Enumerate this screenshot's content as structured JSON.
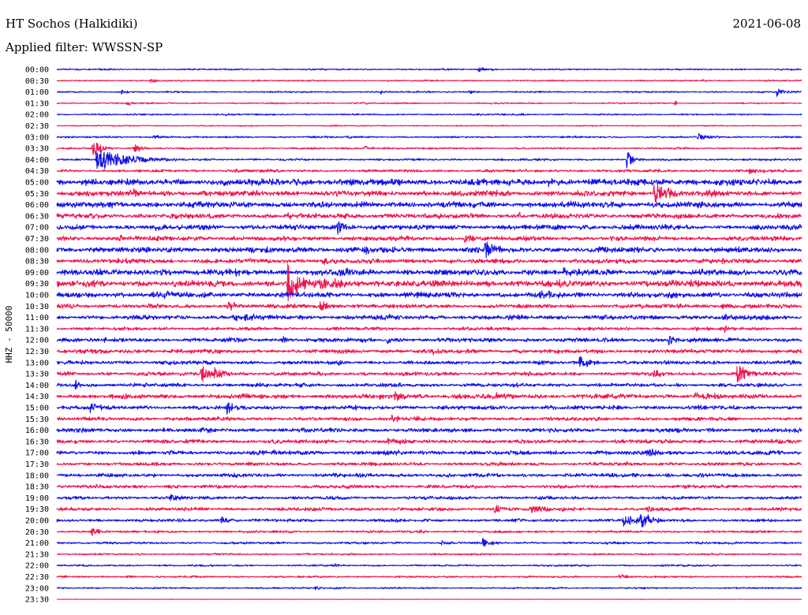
{
  "chart_data": {
    "type": "line",
    "title": "HT Sochos (Halkidiki)",
    "date": "2021-06-08",
    "subtitle": "Applied filter: WWSSN-SP",
    "ylabel": "HHZ - 50000",
    "xlim": [
      0,
      30
    ],
    "colors": {
      "on_the_hour": "#1212e8",
      "half_hour": "#ee1650",
      "background": "#ffffff",
      "text": "#000000"
    },
    "rows": [
      {
        "label": "00:00",
        "noise": 0.07,
        "events": [
          {
            "min": 17.0,
            "amp": 0.25,
            "decay": 0.2
          },
          {
            "min": 17.5,
            "amp": 0.15,
            "decay": 0.15
          }
        ]
      },
      {
        "label": "00:30",
        "noise": 0.06,
        "events": [
          {
            "min": 3.75,
            "amp": 0.18,
            "decay": 0.4
          },
          {
            "min": 7.9,
            "amp": 0.12,
            "decay": 0.2
          },
          {
            "min": 26.0,
            "amp": 0.1,
            "decay": 0.2
          }
        ]
      },
      {
        "label": "01:00",
        "noise": 0.07,
        "events": [
          {
            "min": 2.6,
            "amp": 0.2,
            "decay": 0.2
          },
          {
            "min": 13.0,
            "amp": 0.18,
            "decay": 0.3
          },
          {
            "min": 16.6,
            "amp": 0.15,
            "decay": 0.3
          },
          {
            "min": 29.0,
            "amp": 0.4,
            "decay": 0.25
          }
        ]
      },
      {
        "label": "01:30",
        "noise": 0.06,
        "events": [
          {
            "min": 2.8,
            "amp": 0.2,
            "decay": 0.3
          },
          {
            "min": 12.3,
            "amp": 0.12,
            "decay": 0.3
          },
          {
            "min": 24.9,
            "amp": 0.35,
            "decay": 0.05
          }
        ]
      },
      {
        "label": "02:00",
        "noise": 0.07,
        "events": [
          {
            "min": 6.8,
            "amp": 0.12,
            "decay": 0.3
          },
          {
            "min": 18.5,
            "amp": 0.1,
            "decay": 0.3
          }
        ]
      },
      {
        "label": "02:30",
        "noise": 0.05,
        "events": [
          {
            "min": 11.0,
            "amp": 0.1,
            "decay": 0.3
          }
        ]
      },
      {
        "label": "03:00",
        "noise": 0.08,
        "events": [
          {
            "min": 3.9,
            "amp": 0.2,
            "decay": 0.4
          },
          {
            "min": 11.7,
            "amp": 0.15,
            "decay": 0.3
          },
          {
            "min": 25.8,
            "amp": 0.3,
            "decay": 0.5
          }
        ]
      },
      {
        "label": "03:30",
        "noise": 0.08,
        "events": [
          {
            "min": 1.45,
            "amp": 0.85,
            "decay": 0.3
          },
          {
            "min": 3.1,
            "amp": 0.45,
            "decay": 0.3
          },
          {
            "min": 12.4,
            "amp": 0.2,
            "decay": 0.4
          }
        ]
      },
      {
        "label": "04:00",
        "noise": 0.09,
        "events": [
          {
            "min": 1.6,
            "amp": 1.0,
            "decay": 1.2
          },
          {
            "min": 22.95,
            "amp": 0.75,
            "decay": 0.25
          }
        ]
      },
      {
        "label": "04:30",
        "noise": 0.12,
        "events": [
          {
            "min": 7.2,
            "amp": 0.15,
            "decay": 0.8
          },
          {
            "min": 27.9,
            "amp": 0.2,
            "decay": 0.8
          }
        ]
      },
      {
        "label": "05:00",
        "noise": 0.28,
        "events": [
          {
            "min": 1.0,
            "amp": 0.25,
            "decay": 0.4
          },
          {
            "min": 9.5,
            "amp": 0.2,
            "decay": 0.4
          },
          {
            "min": 19.8,
            "amp": 0.25,
            "decay": 0.4
          },
          {
            "min": 24.3,
            "amp": 0.2,
            "decay": 0.3
          }
        ]
      },
      {
        "label": "05:30",
        "noise": 0.24,
        "events": [
          {
            "min": 3.1,
            "amp": 0.4,
            "decay": 0.3
          },
          {
            "min": 17.6,
            "amp": 0.2,
            "decay": 0.4
          },
          {
            "min": 24.05,
            "amp": 1.05,
            "decay": 0.6
          }
        ]
      },
      {
        "label": "06:00",
        "noise": 0.26,
        "events": [
          {
            "min": 13.2,
            "amp": 0.2,
            "decay": 0.3
          },
          {
            "min": 22.0,
            "amp": 0.2,
            "decay": 0.4
          }
        ]
      },
      {
        "label": "06:30",
        "noise": 0.22,
        "events": [
          {
            "min": 9.3,
            "amp": 0.18,
            "decay": 0.3
          },
          {
            "min": 18.6,
            "amp": 0.2,
            "decay": 0.3
          }
        ]
      },
      {
        "label": "07:00",
        "noise": 0.22,
        "events": [
          {
            "min": 3.95,
            "amp": 0.35,
            "decay": 0.2
          },
          {
            "min": 5.9,
            "amp": 0.2,
            "decay": 0.2
          },
          {
            "min": 11.3,
            "amp": 0.7,
            "decay": 0.35
          }
        ]
      },
      {
        "label": "07:30",
        "noise": 0.2,
        "events": [
          {
            "min": 2.5,
            "amp": 0.3,
            "decay": 0.5
          },
          {
            "min": 16.4,
            "amp": 0.45,
            "decay": 0.4
          }
        ]
      },
      {
        "label": "08:00",
        "noise": 0.24,
        "events": [
          {
            "min": 12.4,
            "amp": 0.35,
            "decay": 0.5
          },
          {
            "min": 17.25,
            "amp": 0.75,
            "decay": 0.5
          }
        ]
      },
      {
        "label": "08:30",
        "noise": 0.2,
        "events": [
          {
            "min": 10.7,
            "amp": 0.3,
            "decay": 0.4
          },
          {
            "min": 26.8,
            "amp": 0.2,
            "decay": 0.3
          }
        ]
      },
      {
        "label": "09:00",
        "noise": 0.26,
        "events": [
          {
            "min": 4.2,
            "amp": 0.35,
            "decay": 0.5
          },
          {
            "min": 11.4,
            "amp": 0.3,
            "decay": 0.3
          },
          {
            "min": 20.4,
            "amp": 0.3,
            "decay": 0.3
          }
        ]
      },
      {
        "label": "09:30",
        "noise": 0.28,
        "events": [
          {
            "min": 9.3,
            "amp": 2.0,
            "decay": 0.35
          },
          {
            "min": 10.6,
            "amp": 0.5,
            "decay": 1.2
          },
          {
            "min": 17.3,
            "amp": 0.3,
            "decay": 0.2
          }
        ]
      },
      {
        "label": "10:00",
        "noise": 0.24,
        "events": [
          {
            "min": 3.9,
            "amp": 0.3,
            "decay": 0.5
          },
          {
            "min": 19.5,
            "amp": 0.2,
            "decay": 0.5
          }
        ]
      },
      {
        "label": "10:30",
        "noise": 0.18,
        "events": [
          {
            "min": 6.9,
            "amp": 0.4,
            "decay": 0.5
          },
          {
            "min": 10.6,
            "amp": 0.5,
            "decay": 0.4
          },
          {
            "min": 25.0,
            "amp": 0.3,
            "decay": 0.2
          },
          {
            "min": 26.8,
            "amp": 0.35,
            "decay": 0.2
          }
        ]
      },
      {
        "label": "11:00",
        "noise": 0.2,
        "events": [
          {
            "min": 7.1,
            "amp": 0.35,
            "decay": 0.4
          },
          {
            "min": 7.6,
            "amp": 0.3,
            "decay": 0.4
          },
          {
            "min": 13.1,
            "amp": 0.2,
            "decay": 0.3
          },
          {
            "min": 26.9,
            "amp": 0.2,
            "decay": 0.2
          }
        ]
      },
      {
        "label": "11:30",
        "noise": 0.14,
        "events": [
          {
            "min": 25.7,
            "amp": 0.25,
            "decay": 0.2
          },
          {
            "min": 26.9,
            "amp": 0.4,
            "decay": 0.1
          }
        ]
      },
      {
        "label": "12:00",
        "noise": 0.18,
        "events": [
          {
            "min": 9.0,
            "amp": 0.3,
            "decay": 0.4
          },
          {
            "min": 13.3,
            "amp": 0.3,
            "decay": 0.3
          },
          {
            "min": 24.65,
            "amp": 0.5,
            "decay": 0.35
          }
        ]
      },
      {
        "label": "12:30",
        "noise": 0.18,
        "events": [
          {
            "min": 5.2,
            "amp": 0.3,
            "decay": 0.2
          },
          {
            "min": 15.0,
            "amp": 0.25,
            "decay": 0.3
          },
          {
            "min": 27.5,
            "amp": 0.2,
            "decay": 0.5
          }
        ]
      },
      {
        "label": "13:00",
        "noise": 0.16,
        "events": [
          {
            "min": 4.5,
            "amp": 0.15,
            "decay": 0.3
          },
          {
            "min": 11.3,
            "amp": 0.3,
            "decay": 0.2
          },
          {
            "min": 21.05,
            "amp": 0.6,
            "decay": 0.4
          }
        ]
      },
      {
        "label": "13:30",
        "noise": 0.16,
        "events": [
          {
            "min": 5.8,
            "amp": 0.85,
            "decay": 0.35
          },
          {
            "min": 6.35,
            "amp": 0.6,
            "decay": 0.35
          },
          {
            "min": 10.6,
            "amp": 0.25,
            "decay": 0.2
          },
          {
            "min": 24.0,
            "amp": 0.45,
            "decay": 0.25
          },
          {
            "min": 27.4,
            "amp": 0.9,
            "decay": 0.4
          }
        ]
      },
      {
        "label": "14:00",
        "noise": 0.16,
        "events": [
          {
            "min": 0.75,
            "amp": 0.45,
            "decay": 0.2
          },
          {
            "min": 9.8,
            "amp": 0.2,
            "decay": 0.3
          },
          {
            "min": 24.9,
            "amp": 0.15,
            "decay": 0.3
          }
        ]
      },
      {
        "label": "14:30",
        "noise": 0.2,
        "events": [
          {
            "min": 13.6,
            "amp": 0.35,
            "decay": 0.4
          },
          {
            "min": 17.7,
            "amp": 0.3,
            "decay": 0.3
          },
          {
            "min": 25.7,
            "amp": 0.35,
            "decay": 0.6
          }
        ]
      },
      {
        "label": "15:00",
        "noise": 0.18,
        "events": [
          {
            "min": 1.35,
            "amp": 0.45,
            "decay": 0.3
          },
          {
            "min": 6.85,
            "amp": 0.65,
            "decay": 0.2
          },
          {
            "min": 9.8,
            "amp": 0.25,
            "decay": 0.3
          },
          {
            "min": 19.7,
            "amp": 0.2,
            "decay": 0.4
          }
        ]
      },
      {
        "label": "15:30",
        "noise": 0.16,
        "events": [
          {
            "min": 13.45,
            "amp": 0.35,
            "decay": 0.4
          },
          {
            "min": 14.4,
            "amp": 0.25,
            "decay": 0.3
          }
        ]
      },
      {
        "label": "16:00",
        "noise": 0.18,
        "events": [
          {
            "min": 11.7,
            "amp": 0.2,
            "decay": 0.3
          },
          {
            "min": 24.9,
            "amp": 0.25,
            "decay": 0.3
          }
        ]
      },
      {
        "label": "16:30",
        "noise": 0.17,
        "events": [
          {
            "min": 13.3,
            "amp": 0.25,
            "decay": 0.5
          }
        ]
      },
      {
        "label": "17:00",
        "noise": 0.18,
        "events": [
          {
            "min": 8.7,
            "amp": 0.22,
            "decay": 0.3
          },
          {
            "min": 23.85,
            "amp": 0.45,
            "decay": 0.3
          }
        ]
      },
      {
        "label": "17:30",
        "noise": 0.15,
        "events": [
          {
            "min": 17.4,
            "amp": 0.2,
            "decay": 0.3
          }
        ]
      },
      {
        "label": "18:00",
        "noise": 0.16,
        "events": [
          {
            "min": 11.1,
            "amp": 0.2,
            "decay": 0.4
          },
          {
            "min": 23.15,
            "amp": 0.25,
            "decay": 0.2
          },
          {
            "min": 24.55,
            "amp": 0.22,
            "decay": 0.3
          }
        ]
      },
      {
        "label": "18:30",
        "noise": 0.15,
        "events": [
          {
            "min": 4.5,
            "amp": 0.2,
            "decay": 0.3
          }
        ]
      },
      {
        "label": "19:00",
        "noise": 0.14,
        "events": [
          {
            "min": 4.55,
            "amp": 0.3,
            "decay": 0.4
          }
        ]
      },
      {
        "label": "19:30",
        "noise": 0.15,
        "events": [
          {
            "min": 17.55,
            "amp": 0.5,
            "decay": 0.4
          },
          {
            "min": 19.0,
            "amp": 0.3,
            "decay": 1.0
          },
          {
            "min": 23.8,
            "amp": 0.25,
            "decay": 0.3
          }
        ]
      },
      {
        "label": "20:00",
        "noise": 0.13,
        "events": [
          {
            "min": 6.6,
            "amp": 0.35,
            "decay": 0.3
          },
          {
            "min": 22.8,
            "amp": 0.6,
            "decay": 0.5
          },
          {
            "min": 23.5,
            "amp": 0.75,
            "decay": 0.35
          }
        ]
      },
      {
        "label": "20:30",
        "noise": 0.1,
        "events": [
          {
            "min": 1.4,
            "amp": 0.45,
            "decay": 0.3
          },
          {
            "min": 14.6,
            "amp": 0.15,
            "decay": 0.2
          }
        ]
      },
      {
        "label": "21:00",
        "noise": 0.1,
        "events": [
          {
            "min": 15.5,
            "amp": 0.2,
            "decay": 0.3
          },
          {
            "min": 17.15,
            "amp": 0.45,
            "decay": 0.2
          }
        ]
      },
      {
        "label": "21:30",
        "noise": 0.08,
        "events": [
          {
            "min": 10.0,
            "amp": 0.1,
            "decay": 0.3
          }
        ]
      },
      {
        "label": "22:00",
        "noise": 0.08,
        "events": [
          {
            "min": 11.1,
            "amp": 0.15,
            "decay": 0.3
          },
          {
            "min": 25.2,
            "amp": 0.12,
            "decay": 0.3
          }
        ]
      },
      {
        "label": "22:30",
        "noise": 0.08,
        "events": [
          {
            "min": 2.8,
            "amp": 0.15,
            "decay": 0.3
          },
          {
            "min": 22.65,
            "amp": 0.3,
            "decay": 0.3
          }
        ]
      },
      {
        "label": "23:00",
        "noise": 0.07,
        "events": [
          {
            "min": 10.4,
            "amp": 0.15,
            "decay": 0.4
          },
          {
            "min": 11.2,
            "amp": 0.12,
            "decay": 0.3
          }
        ]
      },
      {
        "label": "23:30",
        "noise": 0.02,
        "events": []
      }
    ]
  }
}
